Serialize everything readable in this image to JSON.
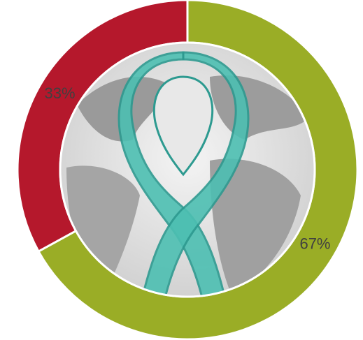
{
  "chart_data": {
    "type": "donut",
    "values": [
      67,
      33
    ],
    "value_labels": [
      "67%",
      "33%"
    ],
    "colors": [
      "#9aad26",
      "#b5182c"
    ],
    "start_angle": 0,
    "direction": "clockwise"
  }
}
